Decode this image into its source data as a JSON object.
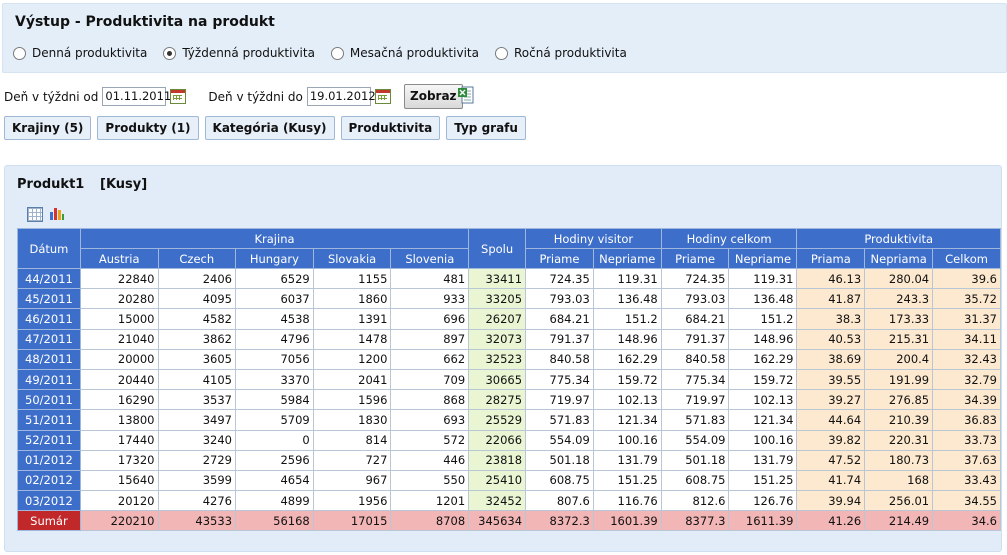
{
  "header": {
    "title": "Výstup - Produktivita na produkt",
    "radios": [
      {
        "label": "Denná produktivita",
        "selected": false
      },
      {
        "label": "Týždenná produktivita",
        "selected": true
      },
      {
        "label": "Mesačná produktivita",
        "selected": false
      },
      {
        "label": "Ročná produktivita",
        "selected": false
      }
    ]
  },
  "filters": {
    "from_label": "Deň v týždni od",
    "from_value": "01.11.2011",
    "to_label": "Deň v týždni do",
    "to_value": "19.01.2012",
    "show_button": "Zobraz"
  },
  "tabs": [
    "Krajiny (5)",
    "Produkty (1)",
    "Kategória (Kusy)",
    "Produktivita",
    "Typ grafu"
  ],
  "panel": {
    "product": "Produkt1",
    "unit": "[Kusy]"
  },
  "table": {
    "headers": {
      "date": "Dátum",
      "country_group": "Krajina",
      "countries": [
        "Austria",
        "Czech",
        "Hungary",
        "Slovakia",
        "Slovenia"
      ],
      "total": "Spolu",
      "visitor_group": "Hodiny visitor",
      "total_hours_group": "Hodiny celkom",
      "productivity_group": "Produktivita",
      "direct": "Priame",
      "indirect": "Nepriame",
      "prod_sub": [
        "Priama",
        "Nepriama",
        "Celkom"
      ]
    },
    "rows": [
      [
        "44/2011",
        "22840",
        "2406",
        "6529",
        "1155",
        "481",
        "33411",
        "724.35",
        "119.31",
        "724.35",
        "119.31",
        "46.13",
        "280.04",
        "39.6"
      ],
      [
        "45/2011",
        "20280",
        "4095",
        "6037",
        "1860",
        "933",
        "33205",
        "793.03",
        "136.48",
        "793.03",
        "136.48",
        "41.87",
        "243.3",
        "35.72"
      ],
      [
        "46/2011",
        "15000",
        "4582",
        "4538",
        "1391",
        "696",
        "26207",
        "684.21",
        "151.2",
        "684.21",
        "151.2",
        "38.3",
        "173.33",
        "31.37"
      ],
      [
        "47/2011",
        "21040",
        "3862",
        "4796",
        "1478",
        "897",
        "32073",
        "791.37",
        "148.96",
        "791.37",
        "148.96",
        "40.53",
        "215.31",
        "34.11"
      ],
      [
        "48/2011",
        "20000",
        "3605",
        "7056",
        "1200",
        "662",
        "32523",
        "840.58",
        "162.29",
        "840.58",
        "162.29",
        "38.69",
        "200.4",
        "32.43"
      ],
      [
        "49/2011",
        "20440",
        "4105",
        "3370",
        "2041",
        "709",
        "30665",
        "775.34",
        "159.72",
        "775.34",
        "159.72",
        "39.55",
        "191.99",
        "32.79"
      ],
      [
        "50/2011",
        "16290",
        "3537",
        "5984",
        "1596",
        "868",
        "28275",
        "719.97",
        "102.13",
        "719.97",
        "102.13",
        "39.27",
        "276.85",
        "34.39"
      ],
      [
        "51/2011",
        "13800",
        "3497",
        "5709",
        "1830",
        "693",
        "25529",
        "571.83",
        "121.34",
        "571.83",
        "121.34",
        "44.64",
        "210.39",
        "36.83"
      ],
      [
        "52/2011",
        "17440",
        "3240",
        "0",
        "814",
        "572",
        "22066",
        "554.09",
        "100.16",
        "554.09",
        "100.16",
        "39.82",
        "220.31",
        "33.73"
      ],
      [
        "01/2012",
        "17320",
        "2729",
        "2596",
        "727",
        "446",
        "23818",
        "501.18",
        "131.79",
        "501.18",
        "131.79",
        "47.52",
        "180.73",
        "37.63"
      ],
      [
        "02/2012",
        "15640",
        "3599",
        "4654",
        "967",
        "550",
        "25410",
        "608.75",
        "151.25",
        "608.75",
        "151.25",
        "41.74",
        "168",
        "33.43"
      ],
      [
        "03/2012",
        "20120",
        "4276",
        "4899",
        "1956",
        "1201",
        "32452",
        "807.6",
        "116.76",
        "812.6",
        "126.76",
        "39.94",
        "256.01",
        "34.55"
      ]
    ],
    "summary": [
      "Sumár",
      "220210",
      "43533",
      "56168",
      "17015",
      "8708",
      "345634",
      "8372.3",
      "1601.39",
      "8377.3",
      "1611.39",
      "41.26",
      "214.49",
      "34.6"
    ]
  }
}
